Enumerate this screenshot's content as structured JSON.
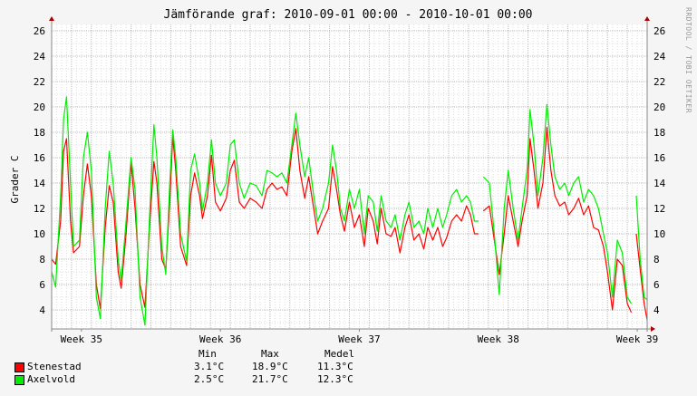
{
  "title": "Jämförande graf: 2010-09-01 00:00 - 2010-10-01 00:00",
  "side_label": "RRDTOOL / TOBI OETIKER",
  "colors": {
    "background": "#f5f5f5",
    "grid_major": "#f4a3a3",
    "grid_minor": "#dddddd",
    "axis": "#888888",
    "arrow": "#aa0000"
  },
  "chart_data": {
    "type": "line",
    "ylabel": "Grader C",
    "xlabel": "",
    "ylim": [
      2.5,
      26.5
    ],
    "y_ticks": [
      4,
      6,
      8,
      10,
      12,
      14,
      16,
      18,
      20,
      22,
      24,
      26
    ],
    "x_unit": "day of period (2010-09-01 00:00 = 0)",
    "xlim": [
      0,
      30
    ],
    "x_ticks": [
      {
        "label": "Week 35",
        "x": 1.5
      },
      {
        "label": "Week 36",
        "x": 8.5
      },
      {
        "label": "Week 37",
        "x": 15.5
      },
      {
        "label": "Week 38",
        "x": 22.5
      },
      {
        "label": "Week 39",
        "x": 29.5
      }
    ],
    "grid": true,
    "series": [
      {
        "name": "Stenestad",
        "color": "#ff0000",
        "points": [
          [
            0,
            8
          ],
          [
            0.2,
            7.6
          ],
          [
            0.45,
            11
          ],
          [
            0.6,
            16.5
          ],
          [
            0.75,
            17.5
          ],
          [
            0.95,
            11
          ],
          [
            1.1,
            8.5
          ],
          [
            1.4,
            9
          ],
          [
            1.6,
            13
          ],
          [
            1.8,
            15.5
          ],
          [
            2.0,
            13
          ],
          [
            2.25,
            6
          ],
          [
            2.45,
            4.1
          ],
          [
            2.7,
            10.5
          ],
          [
            2.9,
            13.8
          ],
          [
            3.1,
            12.5
          ],
          [
            3.35,
            7
          ],
          [
            3.5,
            5.7
          ],
          [
            3.75,
            10
          ],
          [
            4.0,
            15.6
          ],
          [
            4.2,
            12
          ],
          [
            4.45,
            6
          ],
          [
            4.7,
            4.2
          ],
          [
            4.95,
            11
          ],
          [
            5.15,
            15.7
          ],
          [
            5.3,
            14
          ],
          [
            5.55,
            8
          ],
          [
            5.75,
            7.2
          ],
          [
            5.95,
            12.5
          ],
          [
            6.1,
            17.7
          ],
          [
            6.25,
            15
          ],
          [
            6.5,
            9
          ],
          [
            6.8,
            7.5
          ],
          [
            7.0,
            13
          ],
          [
            7.2,
            14.8
          ],
          [
            7.45,
            13
          ],
          [
            7.6,
            11.2
          ],
          [
            7.85,
            13
          ],
          [
            8.05,
            16.2
          ],
          [
            8.25,
            12.5
          ],
          [
            8.5,
            11.8
          ],
          [
            8.8,
            12.8
          ],
          [
            9.0,
            15
          ],
          [
            9.2,
            15.8
          ],
          [
            9.45,
            12.5
          ],
          [
            9.7,
            12
          ],
          [
            10.0,
            12.8
          ],
          [
            10.3,
            12.5
          ],
          [
            10.6,
            12
          ],
          [
            10.85,
            13.5
          ],
          [
            11.1,
            14
          ],
          [
            11.35,
            13.5
          ],
          [
            11.6,
            13.7
          ],
          [
            11.85,
            13
          ],
          [
            12.1,
            16.5
          ],
          [
            12.3,
            18.3
          ],
          [
            12.5,
            15
          ],
          [
            12.75,
            12.8
          ],
          [
            12.95,
            14.5
          ],
          [
            13.2,
            12
          ],
          [
            13.4,
            10
          ],
          [
            13.65,
            11
          ],
          [
            13.95,
            12
          ],
          [
            14.15,
            15.3
          ],
          [
            14.35,
            13.5
          ],
          [
            14.55,
            11.5
          ],
          [
            14.75,
            10.2
          ],
          [
            15.0,
            12.5
          ],
          [
            15.25,
            10.5
          ],
          [
            15.5,
            11.5
          ],
          [
            15.75,
            9
          ],
          [
            15.95,
            12
          ],
          [
            16.2,
            11
          ],
          [
            16.4,
            9.2
          ],
          [
            16.6,
            12
          ],
          [
            16.85,
            10
          ],
          [
            17.1,
            9.8
          ],
          [
            17.3,
            10.5
          ],
          [
            17.55,
            8.5
          ],
          [
            17.8,
            10.5
          ],
          [
            18.0,
            11.5
          ],
          [
            18.25,
            9.5
          ],
          [
            18.5,
            10
          ],
          [
            18.75,
            8.8
          ],
          [
            18.95,
            10.5
          ],
          [
            19.2,
            9.5
          ],
          [
            19.45,
            10.5
          ],
          [
            19.7,
            9
          ],
          [
            19.9,
            9.7
          ],
          [
            20.15,
            11
          ],
          [
            20.4,
            11.5
          ],
          [
            20.65,
            11
          ],
          [
            20.9,
            12.2
          ],
          [
            21.1,
            11.5
          ],
          [
            21.3,
            10
          ],
          [
            21.5,
            10
          ],
          [
            null,
            null
          ],
          [
            21.75,
            11.8
          ],
          [
            22.05,
            12.2
          ],
          [
            22.3,
            9.5
          ],
          [
            22.55,
            6.8
          ],
          [
            22.8,
            10
          ],
          [
            23.0,
            13
          ],
          [
            23.25,
            11
          ],
          [
            23.5,
            9
          ],
          [
            23.7,
            11
          ],
          [
            23.95,
            13
          ],
          [
            24.1,
            17.5
          ],
          [
            24.3,
            15
          ],
          [
            24.5,
            12
          ],
          [
            24.75,
            14
          ],
          [
            24.95,
            18.4
          ],
          [
            25.15,
            15
          ],
          [
            25.35,
            13
          ],
          [
            25.6,
            12.2
          ],
          [
            25.85,
            12.5
          ],
          [
            26.05,
            11.5
          ],
          [
            26.3,
            12
          ],
          [
            26.55,
            12.8
          ],
          [
            26.8,
            11.5
          ],
          [
            27.05,
            12.2
          ],
          [
            27.3,
            10.5
          ],
          [
            27.55,
            10.3
          ],
          [
            27.8,
            9
          ],
          [
            28.0,
            7
          ],
          [
            28.25,
            4
          ],
          [
            28.5,
            8
          ],
          [
            28.75,
            7.5
          ],
          [
            29.0,
            4.5
          ],
          [
            29.2,
            3.8
          ],
          [
            null,
            null
          ],
          [
            29.45,
            10
          ],
          [
            29.65,
            7.2
          ],
          [
            29.85,
            4.5
          ],
          [
            30,
            3.2
          ]
        ]
      },
      {
        "name": "Axelvold",
        "color": "#00ee00",
        "points": [
          [
            0,
            7
          ],
          [
            0.2,
            5.8
          ],
          [
            0.45,
            13
          ],
          [
            0.6,
            19
          ],
          [
            0.75,
            20.8
          ],
          [
            0.95,
            14
          ],
          [
            1.1,
            9
          ],
          [
            1.4,
            9.5
          ],
          [
            1.6,
            16
          ],
          [
            1.8,
            18
          ],
          [
            2.0,
            15
          ],
          [
            2.25,
            5
          ],
          [
            2.45,
            3.3
          ],
          [
            2.7,
            12
          ],
          [
            2.9,
            16.5
          ],
          [
            3.1,
            14
          ],
          [
            3.35,
            8
          ],
          [
            3.5,
            6.3
          ],
          [
            3.75,
            11
          ],
          [
            4.0,
            16
          ],
          [
            4.2,
            13.5
          ],
          [
            4.45,
            5
          ],
          [
            4.7,
            2.8
          ],
          [
            4.95,
            12
          ],
          [
            5.15,
            18.6
          ],
          [
            5.3,
            16
          ],
          [
            5.55,
            9
          ],
          [
            5.75,
            6.8
          ],
          [
            5.95,
            14
          ],
          [
            6.1,
            18.2
          ],
          [
            6.25,
            16
          ],
          [
            6.5,
            10
          ],
          [
            6.8,
            7.8
          ],
          [
            7.0,
            15
          ],
          [
            7.2,
            16.3
          ],
          [
            7.45,
            14
          ],
          [
            7.6,
            11.8
          ],
          [
            7.85,
            14
          ],
          [
            8.05,
            17.4
          ],
          [
            8.25,
            14
          ],
          [
            8.5,
            13
          ],
          [
            8.8,
            14
          ],
          [
            9.0,
            17
          ],
          [
            9.2,
            17.4
          ],
          [
            9.45,
            14
          ],
          [
            9.7,
            12.8
          ],
          [
            10.0,
            14
          ],
          [
            10.3,
            13.8
          ],
          [
            10.6,
            13
          ],
          [
            10.85,
            15
          ],
          [
            11.1,
            14.8
          ],
          [
            11.35,
            14.5
          ],
          [
            11.6,
            14.8
          ],
          [
            11.85,
            14
          ],
          [
            12.1,
            17
          ],
          [
            12.3,
            19.5
          ],
          [
            12.5,
            17
          ],
          [
            12.75,
            14.5
          ],
          [
            12.95,
            16
          ],
          [
            13.2,
            13
          ],
          [
            13.4,
            11
          ],
          [
            13.65,
            12
          ],
          [
            13.95,
            14
          ],
          [
            14.15,
            17
          ],
          [
            14.35,
            15
          ],
          [
            14.55,
            12
          ],
          [
            14.75,
            11
          ],
          [
            15.0,
            13.5
          ],
          [
            15.25,
            12
          ],
          [
            15.5,
            13.5
          ],
          [
            15.75,
            10
          ],
          [
            15.95,
            13
          ],
          [
            16.2,
            12.5
          ],
          [
            16.4,
            10.2
          ],
          [
            16.6,
            13
          ],
          [
            16.85,
            11
          ],
          [
            17.1,
            10.5
          ],
          [
            17.3,
            11.5
          ],
          [
            17.55,
            9.5
          ],
          [
            17.8,
            11.5
          ],
          [
            18.0,
            12.5
          ],
          [
            18.25,
            10.5
          ],
          [
            18.5,
            11
          ],
          [
            18.75,
            10
          ],
          [
            18.95,
            12
          ],
          [
            19.2,
            10.5
          ],
          [
            19.45,
            12
          ],
          [
            19.7,
            10.5
          ],
          [
            19.9,
            11.5
          ],
          [
            20.15,
            13
          ],
          [
            20.4,
            13.5
          ],
          [
            20.65,
            12.5
          ],
          [
            20.9,
            13
          ],
          [
            21.1,
            12.5
          ],
          [
            21.3,
            11
          ],
          [
            21.5,
            11
          ],
          [
            null,
            null
          ],
          [
            21.75,
            14.5
          ],
          [
            22.05,
            14
          ],
          [
            22.3,
            10
          ],
          [
            22.55,
            5.2
          ],
          [
            22.8,
            12
          ],
          [
            23.0,
            15
          ],
          [
            23.25,
            12
          ],
          [
            23.5,
            9.5
          ],
          [
            23.7,
            12
          ],
          [
            23.95,
            15
          ],
          [
            24.1,
            19.8
          ],
          [
            24.3,
            17
          ],
          [
            24.5,
            13
          ],
          [
            24.75,
            16
          ],
          [
            24.95,
            20.2
          ],
          [
            25.15,
            17
          ],
          [
            25.35,
            14.5
          ],
          [
            25.6,
            13.5
          ],
          [
            25.85,
            14
          ],
          [
            26.05,
            13
          ],
          [
            26.3,
            14
          ],
          [
            26.55,
            14.5
          ],
          [
            26.8,
            12.5
          ],
          [
            27.05,
            13.5
          ],
          [
            27.3,
            13
          ],
          [
            27.55,
            12
          ],
          [
            27.8,
            10
          ],
          [
            28.0,
            8.5
          ],
          [
            28.25,
            5
          ],
          [
            28.5,
            9.5
          ],
          [
            28.75,
            8.5
          ],
          [
            29.0,
            5
          ],
          [
            29.2,
            4.5
          ],
          [
            null,
            null
          ],
          [
            29.45,
            13
          ],
          [
            29.65,
            8
          ],
          [
            29.85,
            5
          ],
          [
            30,
            4.8
          ]
        ]
      }
    ]
  },
  "stats": {
    "headers": {
      "min": "Min",
      "max": "Max",
      "mean": "Medel"
    },
    "rows": [
      {
        "name": "Stenestad",
        "color": "#ff0000",
        "min": "3.1°C",
        "max": "18.9°C",
        "mean": "11.3°C"
      },
      {
        "name": "Axelvold",
        "color": "#00ee00",
        "min": "2.5°C",
        "max": "21.7°C",
        "mean": "12.3°C"
      }
    ]
  }
}
